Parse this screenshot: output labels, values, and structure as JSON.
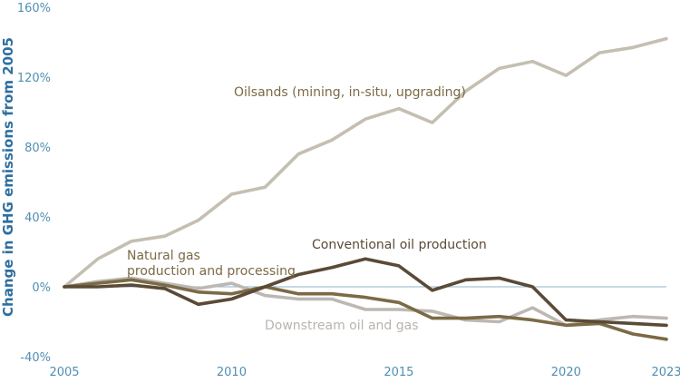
{
  "chart_data": {
    "type": "line",
    "title": "",
    "xlabel": "",
    "ylabel": "Change in GHG emissions from 2005",
    "xlim": [
      2005,
      2023
    ],
    "ylim": [
      -40,
      160
    ],
    "x_ticks": [
      2005,
      2010,
      2015,
      2020,
      2023
    ],
    "x_tick_labels": [
      "2005",
      "2010",
      "2015",
      "2020",
      "2023"
    ],
    "y_ticks": [
      -40,
      0,
      40,
      80,
      120,
      160
    ],
    "y_tick_labels": [
      "-40%",
      "0%",
      "40%",
      "80%",
      "120%",
      "160%"
    ],
    "zero_line_color": "#8fb3cc",
    "grid": false,
    "legend": "none",
    "x": [
      2005,
      2006,
      2007,
      2008,
      2009,
      2010,
      2011,
      2012,
      2013,
      2014,
      2015,
      2016,
      2017,
      2018,
      2019,
      2020,
      2021,
      2022,
      2023
    ],
    "series": [
      {
        "name": "Oilsands (mining, in-situ, upgrading)",
        "color": "#c4bfb1",
        "values": [
          0,
          16,
          26,
          29,
          38,
          53,
          57,
          76,
          84,
          96,
          102,
          94,
          112,
          125,
          129,
          121,
          134,
          137,
          142
        ]
      },
      {
        "name": "Conventional oil production",
        "color": "#5a4a36",
        "values": [
          0,
          0,
          1,
          -1,
          -10,
          -7,
          0,
          7,
          11,
          16,
          12,
          -2,
          4,
          5,
          0,
          -19,
          -20,
          -21,
          -22
        ]
      },
      {
        "name": "Natural gas production and processing",
        "color": "#7b6a45",
        "values": [
          0,
          2,
          4,
          1,
          -3,
          -4,
          0,
          -4,
          -4,
          -6,
          -9,
          -18,
          -18,
          -17,
          -19,
          -22,
          -21,
          -27,
          -30
        ]
      },
      {
        "name": "Downstream oil and gas",
        "color": "#bdb8b3",
        "values": [
          0,
          3,
          5,
          2,
          -1,
          2,
          -5,
          -7,
          -7,
          -13,
          -13,
          -14,
          -19,
          -20,
          -12,
          -22,
          -19,
          -17,
          -18
        ]
      }
    ],
    "annotations": [
      {
        "text": "Oilsands (mining, in-situ, upgrading)",
        "color": "#7b6a45"
      },
      {
        "text": "Conventional oil production",
        "color": "#5a4a36"
      },
      {
        "text": "Natural gas",
        "color": "#7b6a45"
      },
      {
        "text": "production and processing",
        "color": "#7b6a45"
      },
      {
        "text": "Downstream oil and gas",
        "color": "#b9b4ae"
      }
    ]
  }
}
